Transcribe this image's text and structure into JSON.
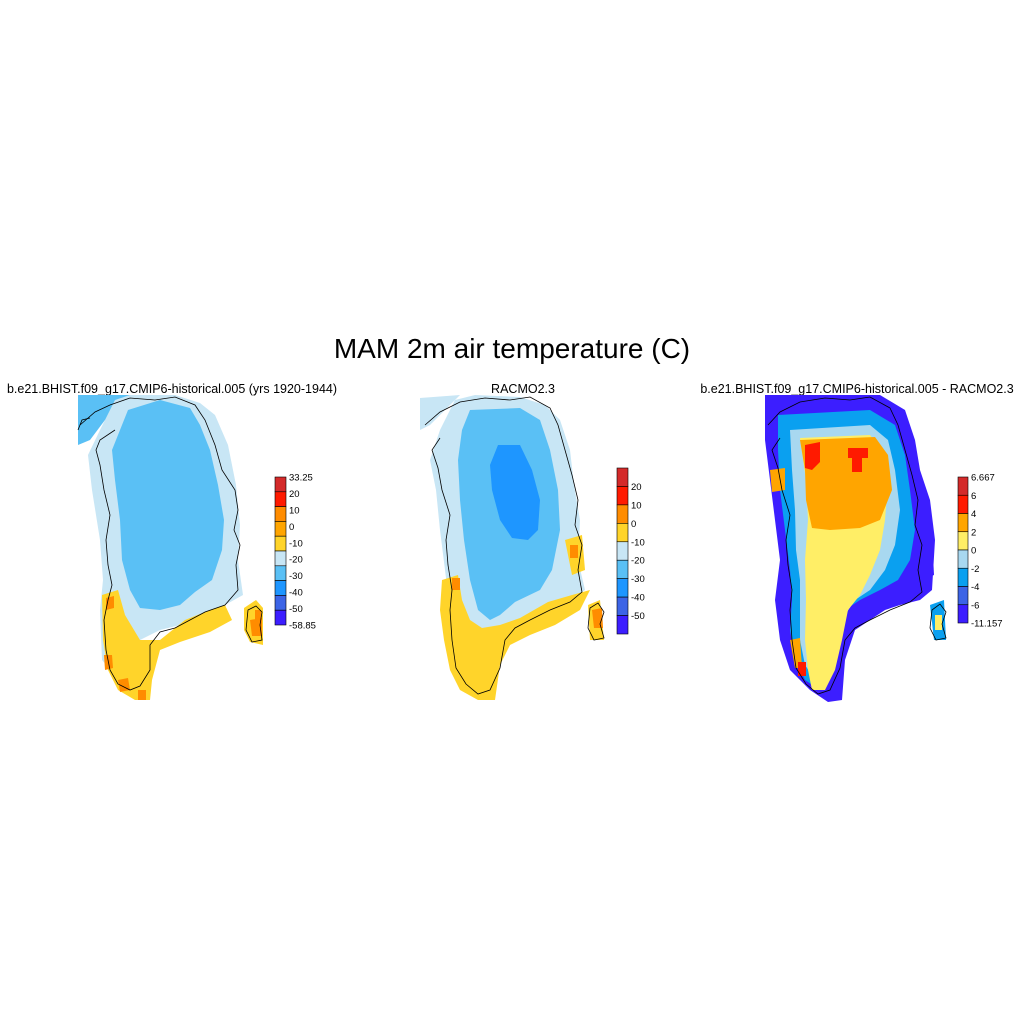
{
  "title": "MAM 2m air temperature (C)",
  "panels": [
    {
      "title": "b.e21.BHIST.f09_g17.CMIP6-historical.005 (yrs 1920-1944)",
      "colorbar": {
        "labels": [
          "33.25",
          "20",
          "10",
          "0",
          "-10",
          "-20",
          "-30",
          "-40",
          "-50",
          "-58.85"
        ],
        "colors": [
          "#d42a2a",
          "#ff1a00",
          "#ff8c00",
          "#ffa500",
          "#ffd42a",
          "#c8e6f5",
          "#5ac0f5",
          "#1e96ff",
          "#3c64e6",
          "#3c1eff"
        ]
      }
    },
    {
      "title": "RACMO2.3",
      "colorbar": {
        "labels": [
          "20",
          "10",
          "0",
          "-10",
          "-20",
          "-30",
          "-40",
          "-50"
        ],
        "colors": [
          "#d42a2a",
          "#ff1a00",
          "#ff8c00",
          "#ffd42a",
          "#c8e6f5",
          "#5ac0f5",
          "#1e96ff",
          "#3c64e6",
          "#3c1eff"
        ]
      }
    },
    {
      "title": "b.e21.BHIST.f09_g17.CMIP6-historical.005 - RACMO2.3",
      "colorbar": {
        "labels": [
          "6.667",
          "6",
          "4",
          "2",
          "0",
          "-2",
          "-4",
          "-6",
          "-11.157"
        ],
        "colors": [
          "#d42a2a",
          "#ff1a00",
          "#ffa500",
          "#ffee66",
          "#a8d8f0",
          "#0aa0f0",
          "#3c64e6",
          "#3c1eff"
        ]
      }
    }
  ]
}
